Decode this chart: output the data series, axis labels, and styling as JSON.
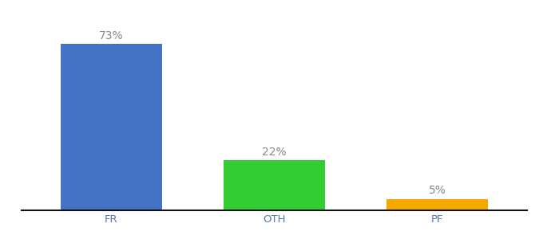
{
  "categories": [
    "FR",
    "OTH",
    "PF"
  ],
  "values": [
    73,
    22,
    5
  ],
  "bar_colors": [
    "#4472c4",
    "#33cc33",
    "#f5a800"
  ],
  "label_texts": [
    "73%",
    "22%",
    "5%"
  ],
  "background_color": "#ffffff",
  "ylim": [
    0,
    85
  ],
  "label_fontsize": 10,
  "tick_fontsize": 9.5,
  "label_color": "#888888",
  "tick_color": "#5577aa",
  "bar_width": 0.62,
  "xlim": [
    -0.55,
    2.55
  ]
}
